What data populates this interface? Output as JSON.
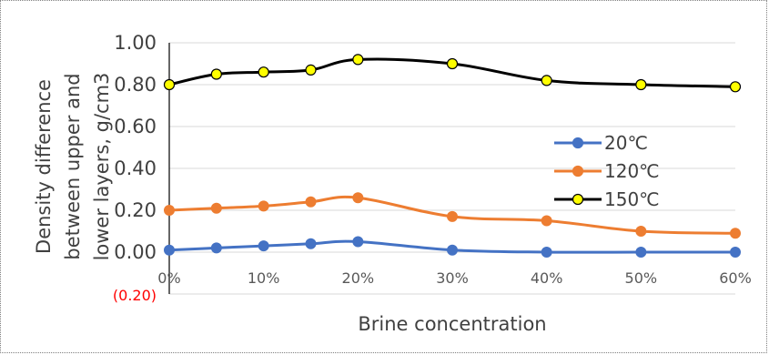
{
  "chart_data": {
    "type": "line",
    "title": "",
    "xlabel": "Brine concentration",
    "ylabel": "Density difference between upper and lower layers, g/cm3",
    "ylabel_lines": [
      "Density difference",
      "between upper and",
      "lower layers, g/cm3"
    ],
    "categories": [
      "0%",
      "5%",
      "10%",
      "15%",
      "20%",
      "30%",
      "40%",
      "50%",
      "60%"
    ],
    "x": [
      0,
      5,
      10,
      15,
      20,
      30,
      40,
      50,
      60
    ],
    "xlim": [
      0,
      60
    ],
    "xticks": [
      0,
      10,
      20,
      30,
      40,
      50,
      60
    ],
    "xtick_labels": [
      "0%",
      "10%",
      "20%",
      "30%",
      "40%",
      "50%",
      "60%"
    ],
    "ylim": [
      -0.2,
      1.0
    ],
    "yticks": [
      -0.2,
      0.0,
      0.2,
      0.4,
      0.6,
      0.8,
      1.0
    ],
    "ytick_labels": [
      "(0.20)",
      "0.00",
      "0.20",
      "0.40",
      "0.60",
      "0.80",
      "1.00"
    ],
    "negative_label_color": "#ff0000",
    "grid": true,
    "legend_position": "right",
    "series": [
      {
        "name": "20℃",
        "color": "#4472c4",
        "values": [
          0.01,
          0.02,
          0.03,
          0.04,
          0.05,
          0.01,
          0.0,
          0.0,
          0.0
        ]
      },
      {
        "name": "120℃",
        "color": "#ed7d31",
        "values": [
          0.2,
          0.21,
          0.22,
          0.24,
          0.26,
          0.17,
          0.15,
          0.1,
          0.09
        ]
      },
      {
        "name": "150℃",
        "color": "#000000",
        "marker_fill": "#ffff00",
        "values": [
          0.8,
          0.85,
          0.86,
          0.87,
          0.92,
          0.9,
          0.82,
          0.8,
          0.79
        ]
      }
    ]
  }
}
